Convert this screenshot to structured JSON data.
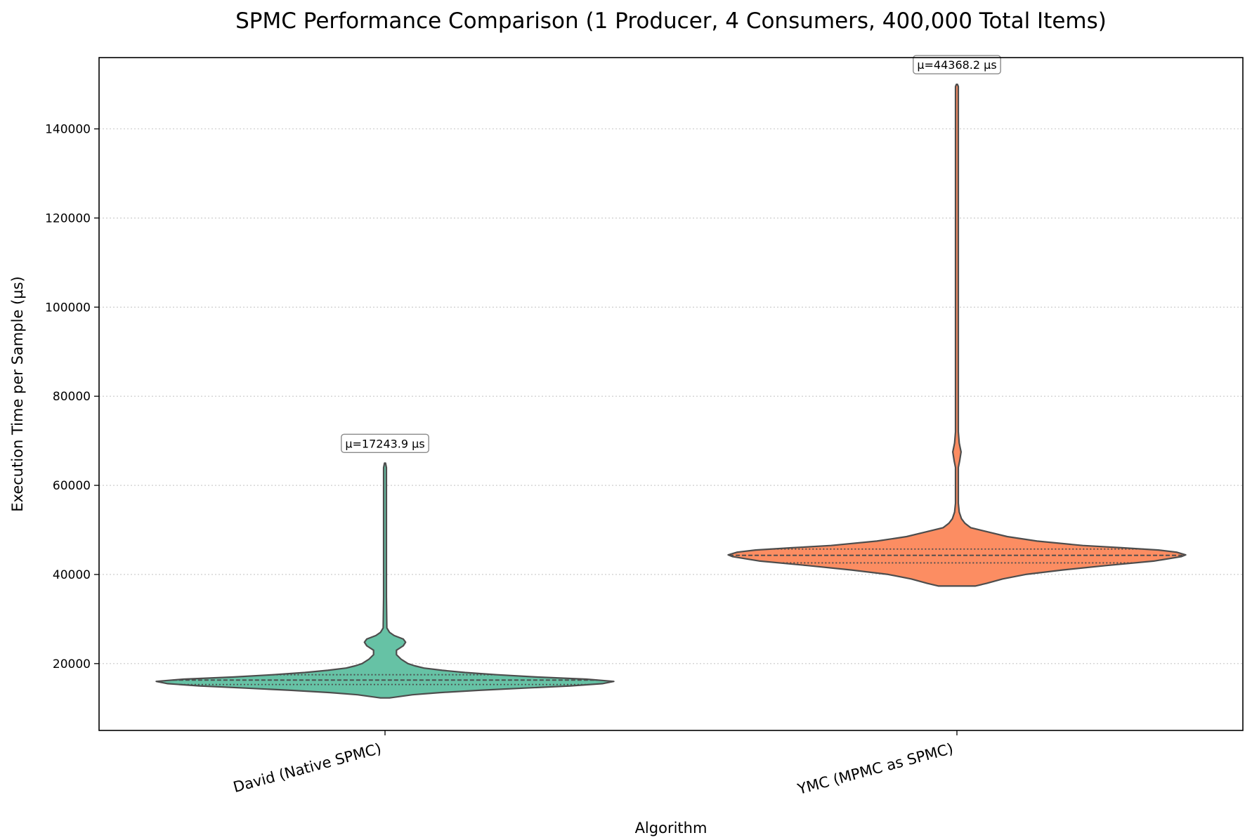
{
  "chart_data": {
    "type": "violin",
    "title": "SPMC Performance Comparison (1 Producer, 4 Consumers, 400,000 Total Items)",
    "xlabel": "Algorithm",
    "ylabel": "Execution Time per Sample (µs)",
    "ylim": [
      5000,
      156000
    ],
    "yticks": [
      20000,
      40000,
      60000,
      80000,
      100000,
      120000,
      140000
    ],
    "ytick_labels": [
      "20000",
      "40000",
      "60000",
      "80000",
      "100000",
      "120000",
      "140000"
    ],
    "grid": "horizontal dotted",
    "categories": [
      "David (Native SPMC)",
      "YMC (MPMC as SPMC)"
    ],
    "series": [
      {
        "category": "David (Native SPMC)",
        "color": "#66c2a5",
        "mean_label": "μ=17243.9 µs",
        "mean": 17243.9,
        "min": 12300,
        "max": 65000,
        "quartiles": [
          15300,
          16300,
          17500
        ],
        "density": [
          [
            12300,
            0.02
          ],
          [
            13000,
            0.12
          ],
          [
            13500,
            0.24
          ],
          [
            14000,
            0.41
          ],
          [
            14500,
            0.61
          ],
          [
            15000,
            0.81
          ],
          [
            15500,
            0.95
          ],
          [
            16000,
            1.0
          ],
          [
            16500,
            0.88
          ],
          [
            17000,
            0.66
          ],
          [
            17500,
            0.49
          ],
          [
            18000,
            0.35
          ],
          [
            18500,
            0.25
          ],
          [
            19000,
            0.17
          ],
          [
            19500,
            0.13
          ],
          [
            20000,
            0.1
          ],
          [
            21000,
            0.07
          ],
          [
            22000,
            0.05
          ],
          [
            23000,
            0.05
          ],
          [
            24000,
            0.08
          ],
          [
            24800,
            0.09
          ],
          [
            25500,
            0.08
          ],
          [
            26300,
            0.04
          ],
          [
            27000,
            0.02
          ],
          [
            28000,
            0.008
          ],
          [
            35000,
            0.006
          ],
          [
            50000,
            0.006
          ],
          [
            64000,
            0.006
          ],
          [
            65000,
            0.002
          ]
        ]
      },
      {
        "category": "YMC (MPMC as SPMC)",
        "color": "#fc8d62",
        "mean_label": "μ=44368.2 µs",
        "mean": 44368.2,
        "min": 37400,
        "max": 150000,
        "quartiles": [
          42600,
          44300,
          45700
        ],
        "density": [
          [
            37400,
            0.08
          ],
          [
            38000,
            0.13
          ],
          [
            39000,
            0.2
          ],
          [
            40000,
            0.3
          ],
          [
            41000,
            0.46
          ],
          [
            42000,
            0.65
          ],
          [
            43000,
            0.86
          ],
          [
            44000,
            0.98
          ],
          [
            44400,
            1.0
          ],
          [
            45000,
            0.96
          ],
          [
            45500,
            0.88
          ],
          [
            46000,
            0.72
          ],
          [
            46500,
            0.55
          ],
          [
            47500,
            0.35
          ],
          [
            48500,
            0.22
          ],
          [
            49500,
            0.14
          ],
          [
            50500,
            0.06
          ],
          [
            51500,
            0.035
          ],
          [
            52500,
            0.02
          ],
          [
            54000,
            0.01
          ],
          [
            56000,
            0.006
          ],
          [
            60000,
            0.006
          ],
          [
            64000,
            0.006
          ],
          [
            65500,
            0.012
          ],
          [
            67500,
            0.018
          ],
          [
            69500,
            0.01
          ],
          [
            72000,
            0.006
          ],
          [
            100000,
            0.006
          ],
          [
            140000,
            0.006
          ],
          [
            149500,
            0.006
          ],
          [
            150000,
            0.002
          ]
        ]
      }
    ]
  }
}
